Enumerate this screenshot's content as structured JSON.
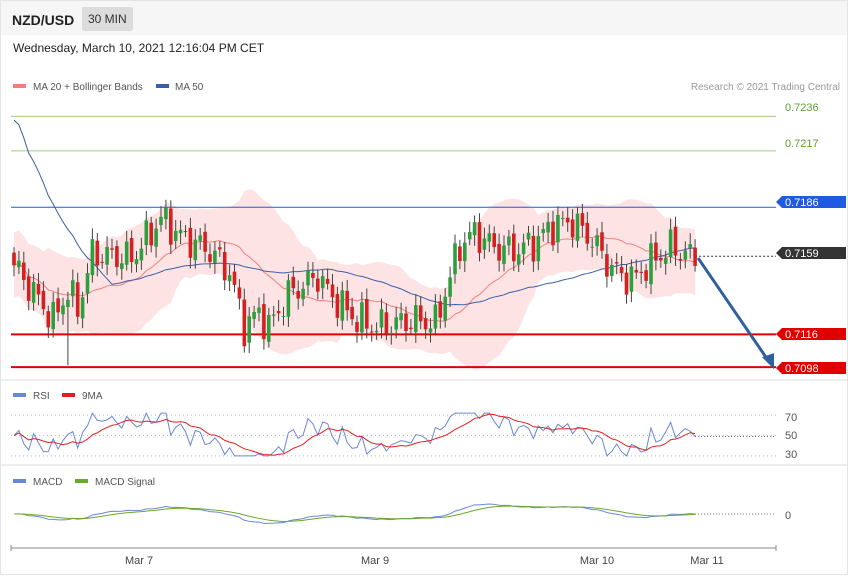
{
  "header": {
    "pair": "NZD/USD",
    "timeframe": "30 MIN",
    "timestamp": "Wednesday, March 10, 2021 12:16:04 PM CET"
  },
  "colors": {
    "bb": "#f08080",
    "ma50": "#3a5fa8",
    "green_line": "#9dcf7a",
    "blue_line": "#1f5ae0",
    "red_line": "#e00000",
    "bull": "#2e9e3e",
    "bear": "#d42020",
    "rsi": "#6a86d8",
    "rsi_ma": "#e02020",
    "macd": "#6a86d8",
    "macd_signal": "#6aaa2a",
    "arrow": "#2f5f9f"
  },
  "chart_data": [
    {
      "type": "candlestick",
      "title": "",
      "legend": [
        {
          "label": "MA 20 + Bollinger Bands",
          "color": "#f08080"
        },
        {
          "label": "MA 50",
          "color": "#3a5fa8"
        }
      ],
      "attribution": "Research © 2021 Trading Central",
      "x_ticks": [
        "Mar 7",
        "Mar 9",
        "Mar 10",
        "Mar 11"
      ],
      "ylim": [
        0.7092,
        0.7245
      ],
      "levels": [
        {
          "value": 0.7236,
          "label": "0.7236",
          "kind": "target"
        },
        {
          "value": 0.7217,
          "label": "0.7217",
          "kind": "target"
        },
        {
          "value": 0.7186,
          "label": "0.7186",
          "kind": "resistance"
        },
        {
          "value": 0.7159,
          "label": "0.7159",
          "kind": "current"
        },
        {
          "value": 0.7116,
          "label": "0.7116",
          "kind": "support"
        },
        {
          "value": 0.7098,
          "label": "0.7098",
          "kind": "support"
        }
      ],
      "forecast_arrow": {
        "from": 0.7158,
        "to": 0.7098
      }
    },
    {
      "type": "line",
      "title": "",
      "legend": [
        {
          "label": "RSI",
          "color": "#6a86d8"
        },
        {
          "label": "9MA",
          "color": "#e02020"
        }
      ],
      "levels": [
        70,
        50,
        30
      ],
      "level_labels": [
        "70",
        "50",
        "30"
      ],
      "ylim": [
        24,
        80
      ]
    },
    {
      "type": "line",
      "title": "",
      "legend": [
        {
          "label": "MACD",
          "color": "#6a86d8"
        },
        {
          "label": "MACD Signal",
          "color": "#6aaa2a"
        }
      ],
      "zero_label": "0"
    }
  ]
}
